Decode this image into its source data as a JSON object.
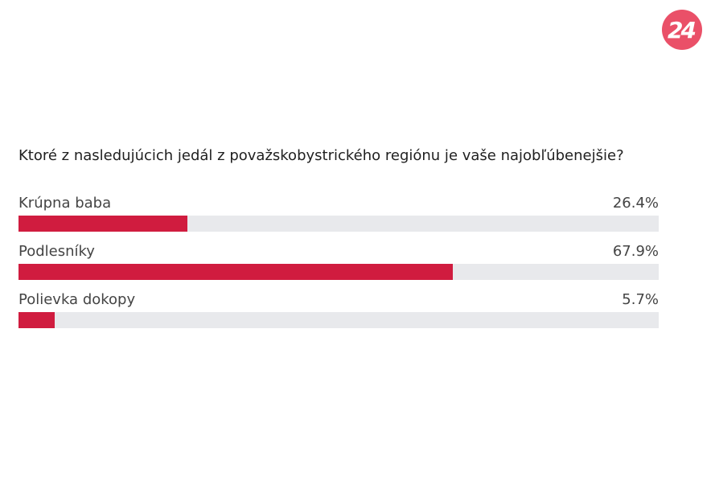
{
  "brand": {
    "logo_text": "24",
    "logo_color": "#ea5068"
  },
  "colors": {
    "bar": "#d01c3f",
    "track": "#e8e9ec"
  },
  "chart_data": {
    "type": "bar",
    "orientation": "horizontal",
    "title": "Ktoré z nasledujúcich jedál z považskobystrického regiónu je vaše najobľúbenejšie?",
    "categories": [
      "Krúpna baba",
      "Podlesníky",
      "Polievka dokopy"
    ],
    "values": [
      26.4,
      67.9,
      5.7
    ],
    "value_labels": [
      "26.4%",
      "67.9%",
      "5.7%"
    ],
    "unit": "%",
    "xlim": [
      0,
      100
    ],
    "grid": false,
    "legend": "none"
  }
}
